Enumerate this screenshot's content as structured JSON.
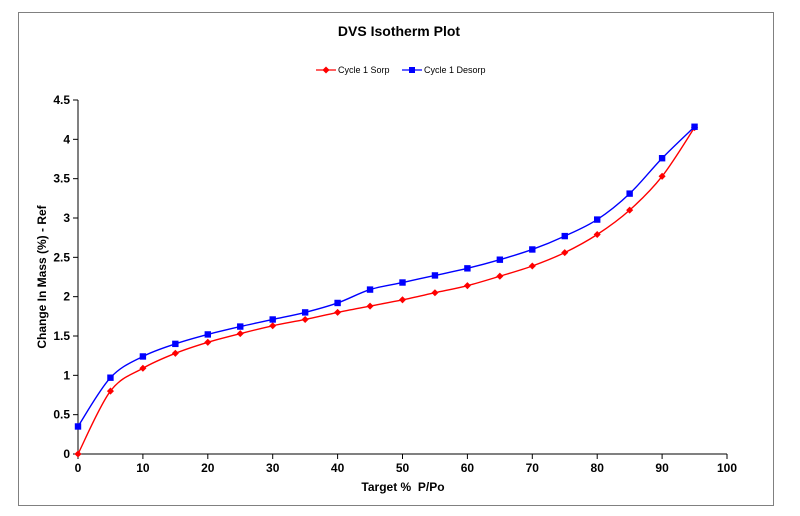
{
  "chart_data": {
    "type": "line",
    "title": "DVS Isotherm Plot",
    "xlabel": "Target %  P/Po",
    "ylabel": "Change In Mass (%) - Ref",
    "xlim": [
      0,
      100
    ],
    "ylim": [
      0,
      4.5
    ],
    "x_ticks": [
      "0",
      "10",
      "20",
      "30",
      "40",
      "50",
      "60",
      "70",
      "80",
      "90",
      "100"
    ],
    "y_ticks": [
      "0",
      "0.5",
      "1",
      "1.5",
      "2",
      "2.5",
      "3",
      "3.5",
      "4",
      "4.5"
    ],
    "grid": false,
    "legend_position": "top",
    "series": [
      {
        "name": "Cycle 1 Sorp",
        "color": "#ff0000",
        "marker": "diamond",
        "x": [
          0,
          5,
          10,
          15,
          20,
          25,
          30,
          35,
          40,
          45,
          50,
          55,
          60,
          65,
          70,
          75,
          80,
          85,
          90,
          95
        ],
        "y": [
          0.0,
          0.8,
          1.09,
          1.28,
          1.42,
          1.53,
          1.63,
          1.71,
          1.8,
          1.88,
          1.96,
          2.05,
          2.14,
          2.26,
          2.39,
          2.56,
          2.79,
          3.1,
          3.53,
          4.15
        ]
      },
      {
        "name": "Cycle 1 Desorp",
        "color": "#0000ff",
        "marker": "square",
        "x": [
          0,
          5,
          10,
          15,
          20,
          25,
          30,
          35,
          40,
          45,
          50,
          55,
          60,
          65,
          70,
          75,
          80,
          85,
          90,
          95
        ],
        "y": [
          0.35,
          0.97,
          1.24,
          1.4,
          1.52,
          1.62,
          1.71,
          1.8,
          1.92,
          2.09,
          2.18,
          2.27,
          2.36,
          2.47,
          2.6,
          2.77,
          2.98,
          3.31,
          3.76,
          4.16
        ]
      }
    ]
  }
}
